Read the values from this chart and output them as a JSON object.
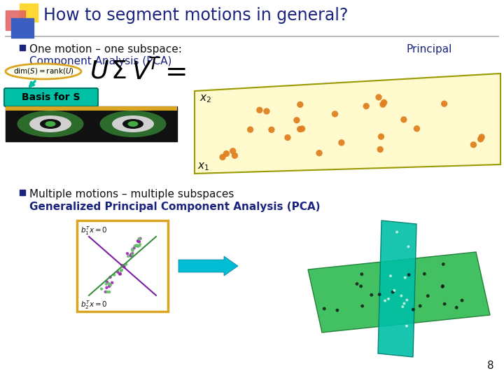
{
  "title": "How to segment motions in general?",
  "title_color": "#1a237e",
  "title_fontsize": 17,
  "bg_color": "#ffffff",
  "bullet1_black": "One motion – one subspace:",
  "bullet1_blue": "Component Analysis (PCA)",
  "bullet1_blue_prefix": "Principal",
  "bullet2_black": "Multiple motions – multiple subspaces",
  "bullet2_blue": "Generalized Principal Component Analysis (PCA)",
  "basis_label": "Basis for S",
  "slide_number": "8",
  "bullet_color": "#1a237e",
  "blue_text_color": "#1a237e",
  "orange_dot_color": "#E08020",
  "plane_color": "#FFFACD",
  "plane_edge_color": "#999900",
  "teal_arrow_color": "#00BCD4",
  "oval_edge_color": "#DAA520",
  "logo_red": "#e06060",
  "logo_yellow": "#fdd835",
  "logo_blue": "#3a5fc0"
}
